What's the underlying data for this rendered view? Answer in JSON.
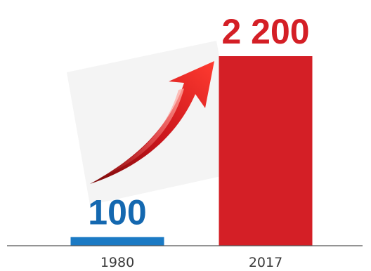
{
  "chart_data": {
    "type": "bar",
    "categories": [
      "1980",
      "2017"
    ],
    "values": [
      100,
      2200
    ],
    "value_labels": [
      "100",
      "2 200"
    ],
    "bar_colors": [
      "#1b7ac4",
      "#d41f26"
    ],
    "label_colors": [
      "#1468b0",
      "#d41f26"
    ],
    "ylim": [
      0,
      2200
    ],
    "grid": false,
    "legend": "none",
    "title": "",
    "xlabel": "",
    "ylabel": "",
    "decoration": "red-rising-arrow-icon"
  }
}
